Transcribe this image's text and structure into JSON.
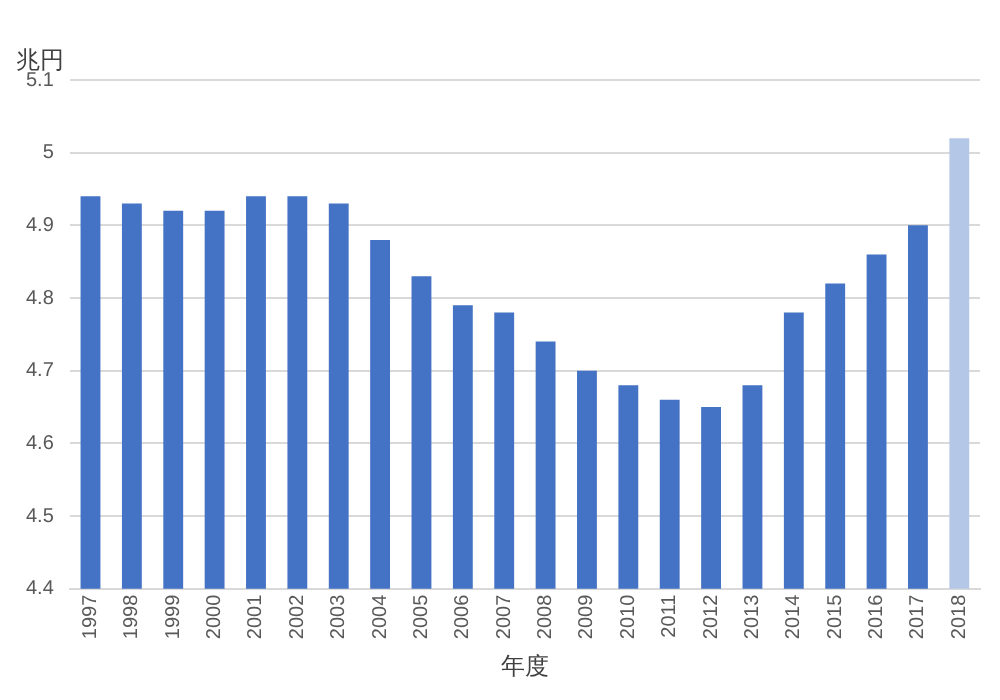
{
  "chart_data": {
    "type": "bar",
    "xlabel": "年度",
    "ylabel": "兆円",
    "categories": [
      "1997",
      "1998",
      "1999",
      "2000",
      "2001",
      "2002",
      "2003",
      "2004",
      "2005",
      "2006",
      "2007",
      "2008",
      "2009",
      "2010",
      "2011",
      "2012",
      "2013",
      "2014",
      "2015",
      "2016",
      "2017",
      "2018"
    ],
    "values": [
      4.94,
      4.93,
      4.92,
      4.92,
      4.94,
      4.94,
      4.93,
      4.88,
      4.83,
      4.79,
      4.78,
      4.74,
      4.7,
      4.68,
      4.66,
      4.65,
      4.68,
      4.78,
      4.82,
      4.86,
      4.9,
      5.02
    ],
    "colors": [
      "#4472c4",
      "#4472c4",
      "#4472c4",
      "#4472c4",
      "#4472c4",
      "#4472c4",
      "#4472c4",
      "#4472c4",
      "#4472c4",
      "#4472c4",
      "#4472c4",
      "#4472c4",
      "#4472c4",
      "#4472c4",
      "#4472c4",
      "#4472c4",
      "#4472c4",
      "#4472c4",
      "#4472c4",
      "#4472c4",
      "#4472c4",
      "#b4c7e7"
    ],
    "ylim": [
      4.4,
      5.1
    ],
    "yticks": [
      4.4,
      4.5,
      4.6,
      4.7,
      4.8,
      4.9,
      5,
      5.1
    ],
    "grid": "y",
    "legend": false
  }
}
